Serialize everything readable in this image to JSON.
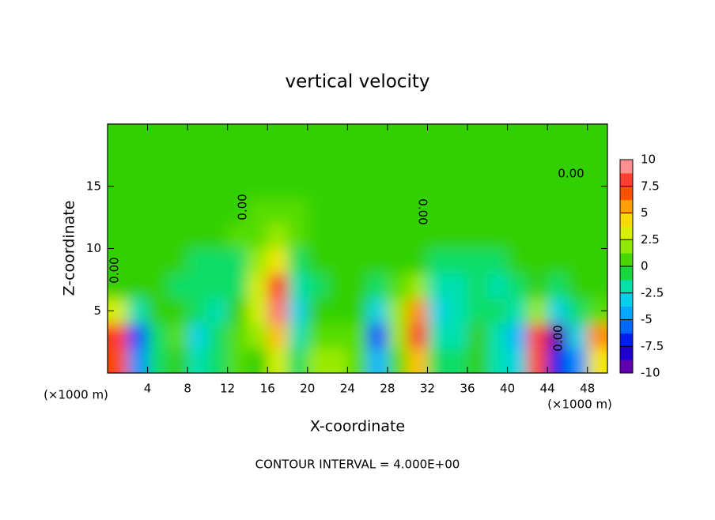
{
  "chart_data": {
    "type": "contour",
    "title": "vertical velocity",
    "x_label": "X-coordinate",
    "y_label": "Z-coordinate",
    "x_unit": "(×1000 m)",
    "y_unit": "(×1000 m)",
    "footer": "CONTOUR INTERVAL = 4.000E+00",
    "contour_labels": [
      "0.00",
      "0.00",
      "0.00",
      "0.00",
      "0.00"
    ],
    "x": [
      1,
      3,
      5,
      7,
      9,
      11,
      13,
      15,
      17,
      19,
      21,
      23,
      25,
      27,
      29,
      31,
      33,
      35,
      37,
      39,
      41,
      43,
      45,
      47,
      49
    ],
    "z": [
      1,
      3,
      5,
      7,
      9,
      11,
      13,
      15,
      17,
      19
    ],
    "values": [
      [
        7,
        -5,
        -1,
        0,
        -2,
        -1,
        1,
        0,
        3,
        -1,
        2,
        2,
        1,
        -4,
        1,
        5,
        -1,
        -1,
        0,
        -2,
        -3,
        7,
        -7,
        -5,
        4
      ],
      [
        8,
        -6,
        -1,
        1,
        -3,
        -1,
        1,
        2,
        5,
        -2,
        1,
        1,
        1,
        -6,
        2,
        8,
        -2,
        -2,
        0,
        -2,
        -4,
        8,
        -9,
        -3,
        6
      ],
      [
        3,
        -2,
        0,
        0,
        -1,
        -2,
        0,
        3,
        9,
        -3,
        0,
        0,
        0,
        -3,
        2,
        6,
        -3,
        -2,
        -1,
        -1,
        -2,
        2,
        -3,
        -1,
        1
      ],
      [
        0,
        0,
        0,
        -1,
        -1,
        -1,
        -1,
        3,
        8,
        -2,
        -1,
        0,
        0,
        -1,
        1,
        2,
        -2,
        -2,
        -1,
        -2,
        -1,
        0,
        -1,
        0,
        0
      ],
      [
        0,
        0,
        0,
        0,
        -1,
        -1,
        -1,
        2,
        4,
        -1,
        0,
        0,
        0,
        0,
        0,
        0,
        -1,
        -1,
        -1,
        -1,
        0,
        0,
        0,
        0,
        0
      ],
      [
        0,
        0,
        0,
        0,
        0,
        0,
        1,
        1,
        2,
        1,
        0,
        0,
        0,
        0,
        0,
        0,
        0,
        0,
        0,
        0,
        0,
        0,
        0,
        0,
        0
      ],
      [
        0,
        0,
        0,
        0,
        0,
        0,
        0,
        1,
        1,
        1,
        0,
        0,
        0,
        0,
        0,
        0,
        0,
        0,
        0,
        0,
        0,
        0,
        0,
        0,
        0
      ],
      [
        0,
        0,
        0,
        0,
        0,
        0,
        0,
        0,
        0,
        0,
        0,
        0,
        0,
        0,
        0,
        0,
        0,
        0,
        0,
        0,
        0,
        0,
        0,
        0,
        0
      ],
      [
        0,
        0,
        0,
        0,
        0,
        0,
        0,
        0,
        0,
        0,
        0,
        0,
        0,
        0,
        0,
        0,
        0,
        0,
        0,
        0,
        0,
        0,
        0,
        0,
        0
      ],
      [
        0,
        0,
        0,
        0,
        0,
        0,
        0,
        0,
        0,
        0,
        0,
        0,
        0,
        0,
        0,
        0,
        0,
        0,
        0,
        0,
        0,
        0,
        0,
        0,
        0
      ]
    ],
    "xlim": [
      0,
      50
    ],
    "ylim": [
      0,
      20
    ],
    "xticks": [
      4,
      8,
      12,
      16,
      20,
      24,
      28,
      32,
      36,
      40,
      44,
      48
    ],
    "yticks": [
      5,
      10,
      15
    ],
    "clim": [
      -10,
      10
    ],
    "cticks": [
      10,
      7.5,
      5,
      2.5,
      0,
      -2.5,
      -5,
      -7.5,
      -10
    ],
    "colorscale": [
      "#8000a0",
      "#4000c0",
      "#0000e0",
      "#0040ff",
      "#0090ff",
      "#00c0ff",
      "#00e0d0",
      "#00e080",
      "#30d000",
      "#60e000",
      "#c0f000",
      "#f0f000",
      "#ffc000",
      "#ff8000",
      "#ff2000",
      "#ff6060",
      "#ffc0c0"
    ]
  }
}
